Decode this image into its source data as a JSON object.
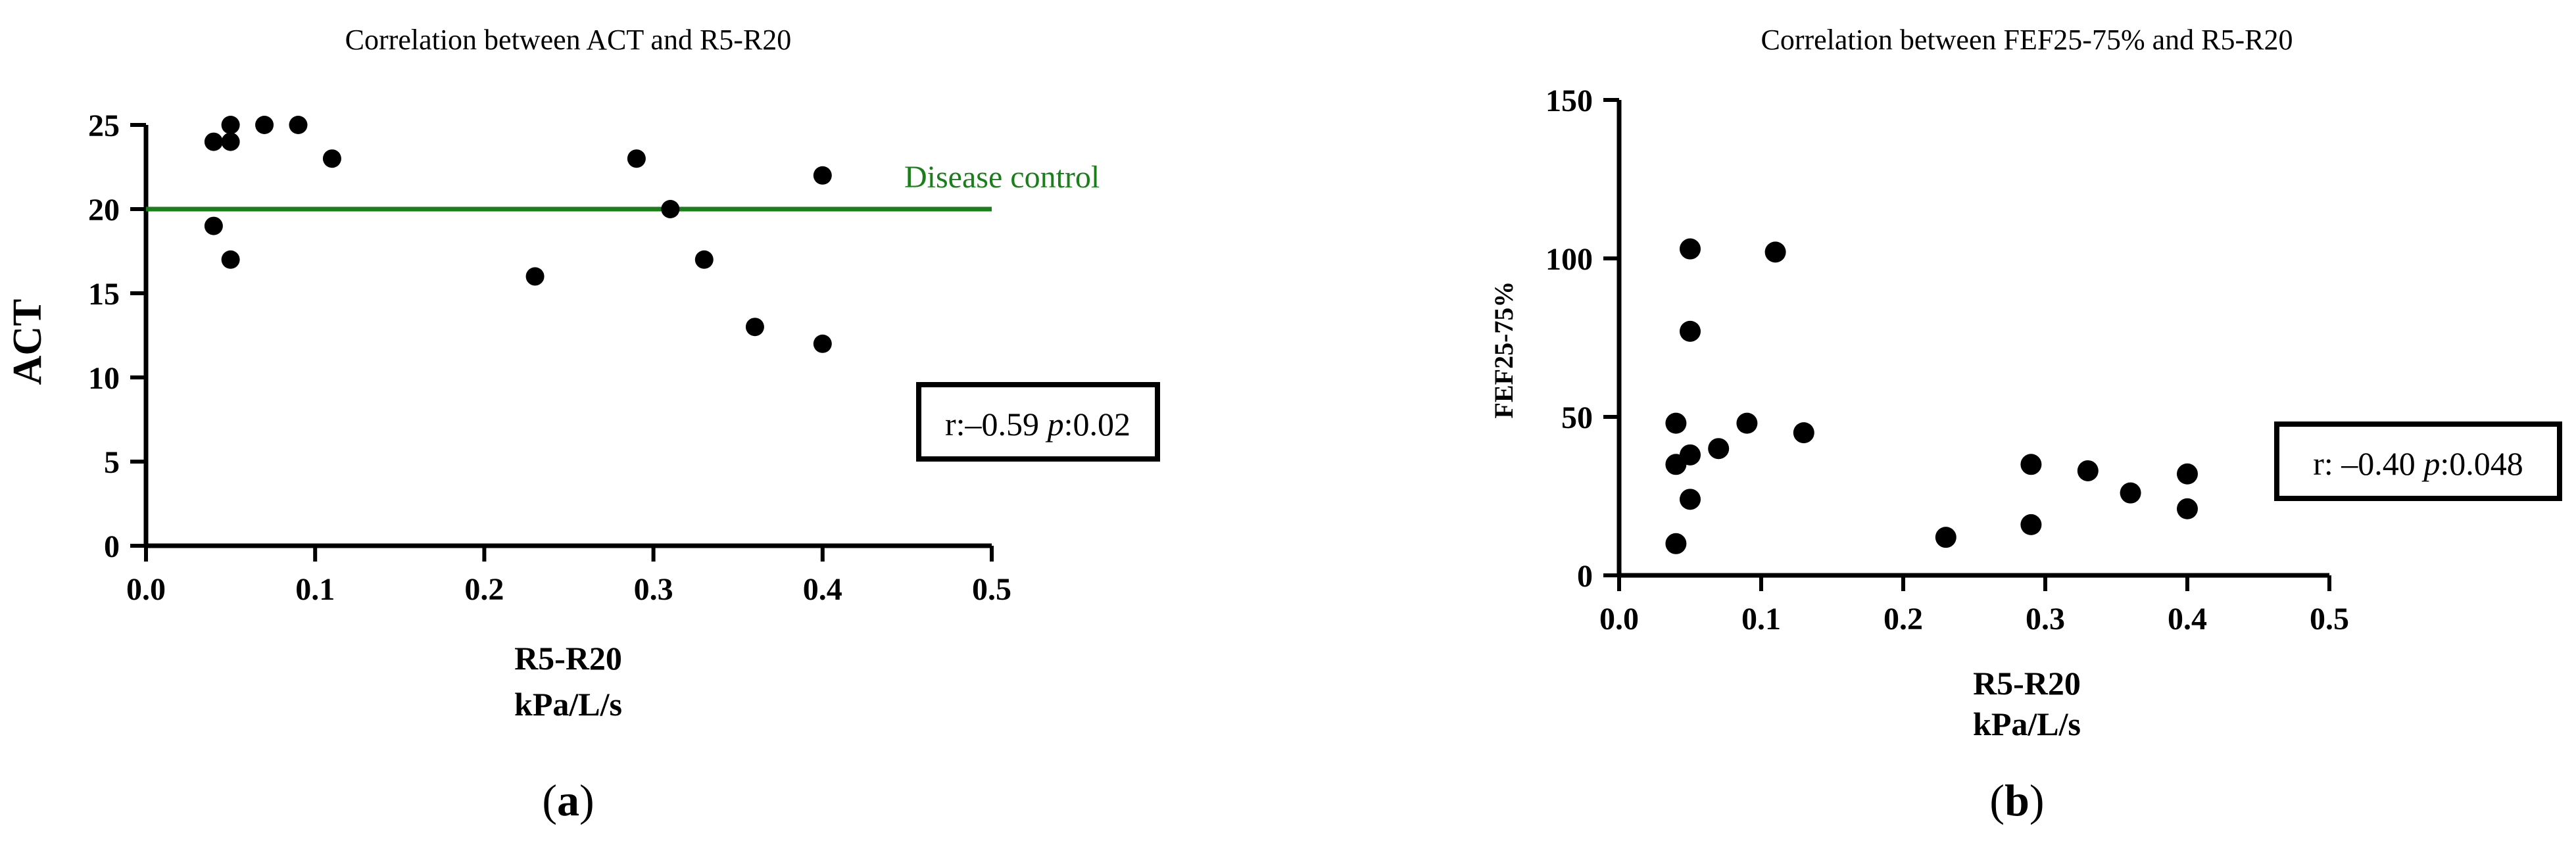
{
  "chart_data": [
    {
      "panel_label": "a",
      "type": "scatter",
      "title": "Correlation between ACT and R5-R20",
      "xlabel": [
        "R5-R20",
        "kPa/L/s"
      ],
      "ylabel": "ACT",
      "xlim": [
        0.0,
        0.5
      ],
      "ylim": [
        0,
        25
      ],
      "xticks": [
        "0.0",
        "0.1",
        "0.2",
        "0.3",
        "0.4",
        "0.5"
      ],
      "yticks": [
        "0",
        "5",
        "10",
        "15",
        "20",
        "25"
      ],
      "grid": false,
      "reference_line": {
        "label": "Disease control",
        "y": 20,
        "color": "#1a7f1a"
      },
      "stat": {
        "prefix": "r:–0.59 ",
        "p_symbol": "p",
        "suffix": ":0.02"
      },
      "points": [
        {
          "x": 0.04,
          "y": 24
        },
        {
          "x": 0.05,
          "y": 25
        },
        {
          "x": 0.05,
          "y": 24
        },
        {
          "x": 0.07,
          "y": 25
        },
        {
          "x": 0.09,
          "y": 25
        },
        {
          "x": 0.11,
          "y": 23
        },
        {
          "x": 0.04,
          "y": 19
        },
        {
          "x": 0.05,
          "y": 17
        },
        {
          "x": 0.23,
          "y": 16
        },
        {
          "x": 0.29,
          "y": 23
        },
        {
          "x": 0.31,
          "y": 20
        },
        {
          "x": 0.33,
          "y": 17
        },
        {
          "x": 0.36,
          "y": 13
        },
        {
          "x": 0.4,
          "y": 22
        },
        {
          "x": 0.4,
          "y": 12
        }
      ]
    },
    {
      "panel_label": "b",
      "type": "scatter",
      "title": "Correlation between FEF25-75% and R5-R20",
      "xlabel": [
        "R5-R20",
        "kPa/L/s"
      ],
      "ylabel": "FEF25-75%",
      "xlim": [
        0.0,
        0.5
      ],
      "ylim": [
        0,
        150
      ],
      "xticks": [
        "0.0",
        "0.1",
        "0.2",
        "0.3",
        "0.4",
        "0.5"
      ],
      "yticks": [
        "0",
        "50",
        "100",
        "150"
      ],
      "grid": false,
      "stat": {
        "prefix": "r: –0.40 ",
        "p_symbol": "p",
        "suffix": ":0.048"
      },
      "points": [
        {
          "x": 0.05,
          "y": 103
        },
        {
          "x": 0.11,
          "y": 102
        },
        {
          "x": 0.05,
          "y": 77
        },
        {
          "x": 0.04,
          "y": 48
        },
        {
          "x": 0.09,
          "y": 48
        },
        {
          "x": 0.13,
          "y": 45
        },
        {
          "x": 0.07,
          "y": 40
        },
        {
          "x": 0.05,
          "y": 38
        },
        {
          "x": 0.04,
          "y": 35
        },
        {
          "x": 0.05,
          "y": 24
        },
        {
          "x": 0.04,
          "y": 10
        },
        {
          "x": 0.23,
          "y": 12
        },
        {
          "x": 0.29,
          "y": 35
        },
        {
          "x": 0.29,
          "y": 16
        },
        {
          "x": 0.33,
          "y": 33
        },
        {
          "x": 0.36,
          "y": 26
        },
        {
          "x": 0.4,
          "y": 32
        },
        {
          "x": 0.4,
          "y": 21
        }
      ]
    }
  ]
}
